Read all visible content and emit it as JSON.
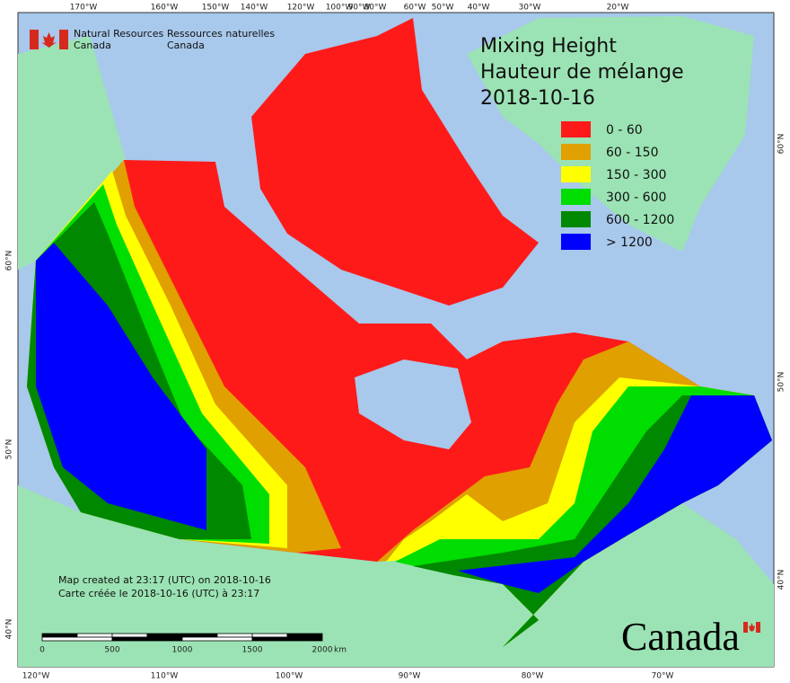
{
  "header": {
    "agency_en": [
      "Natural Resources",
      "Canada"
    ],
    "agency_fr": [
      "Ressources naturelles",
      "Canada"
    ]
  },
  "title": [
    "Mixing Height",
    "Hauteur de mélange",
    "2018-10-16"
  ],
  "legend": [
    {
      "label": "0 - 60",
      "color": "#ff1a1a"
    },
    {
      "label": "60 - 150",
      "color": "#e0a000"
    },
    {
      "label": "150 - 300",
      "color": "#ffff00"
    },
    {
      "label": "300 - 600",
      "color": "#00dd00"
    },
    {
      "label": "600 - 1200",
      "color": "#008800"
    },
    {
      "label": "> 1200",
      "color": "#0000ff"
    }
  ],
  "graticule": {
    "top": [
      "170°W",
      "160°W",
      "150°W",
      "140°W",
      "120°W",
      "100°W",
      "90°W",
      "80°W",
      "60°W",
      "50°W",
      "40°W",
      "30°W",
      "20°W"
    ],
    "bottom": [
      "120°W",
      "110°W",
      "100°W",
      "90°W",
      "80°W",
      "70°W"
    ],
    "left": [
      "60°N",
      "50°N",
      "40°N"
    ],
    "right": [
      "60°N",
      "50°N",
      "40°N"
    ]
  },
  "footer": {
    "created_en": "Map created at 23:17 (UTC) on 2018-10-16",
    "created_fr": "Carte créée le 2018-10-16 (UTC) à 23:17"
  },
  "scale": {
    "labels": [
      "0",
      "500",
      "1000",
      "1500",
      "2000"
    ],
    "unit": "km"
  },
  "wordmark": "Canada"
}
